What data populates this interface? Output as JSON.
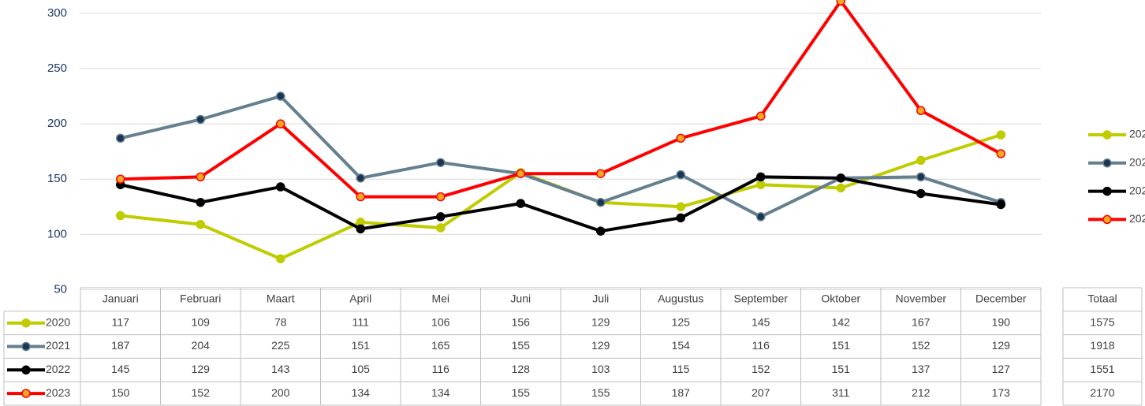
{
  "chart_data": {
    "type": "line",
    "categories": [
      "Januari",
      "Februari",
      "Maart",
      "April",
      "Mei",
      "Juni",
      "Juli",
      "Augustus",
      "September",
      "Oktober",
      "November",
      "December"
    ],
    "series": [
      {
        "name": "2020",
        "color": "#bfcc00",
        "marker_color": "#bfcc00",
        "values": [
          117,
          109,
          78,
          111,
          106,
          156,
          129,
          125,
          145,
          142,
          167,
          190
        ],
        "total": 1575
      },
      {
        "name": "2021",
        "color": "#647f8e",
        "marker_color": "#1c3553",
        "values": [
          187,
          204,
          225,
          151,
          165,
          155,
          129,
          154,
          116,
          151,
          152,
          129
        ],
        "total": 1918
      },
      {
        "name": "2022",
        "color": "#000000",
        "marker_color": "#000000",
        "values": [
          145,
          129,
          143,
          105,
          116,
          128,
          103,
          115,
          152,
          151,
          137,
          127
        ],
        "total": 1551
      },
      {
        "name": "2023",
        "color": "#ff0000",
        "marker_color": "#f5a623",
        "values": [
          150,
          152,
          200,
          134,
          134,
          155,
          155,
          187,
          207,
          311,
          212,
          173
        ],
        "total": 2170
      }
    ],
    "total_label": "Totaal",
    "ylim": [
      50,
      312
    ],
    "yticks": [
      50,
      100,
      150,
      200,
      250,
      300
    ],
    "grid": true,
    "legend": "right"
  }
}
